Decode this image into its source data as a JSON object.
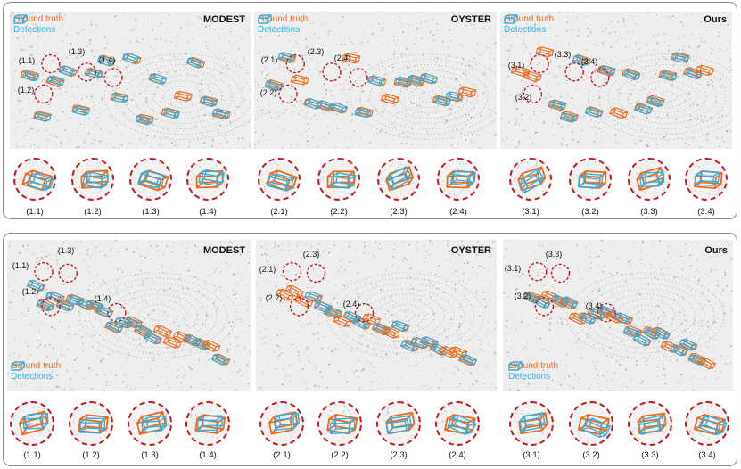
{
  "colors": {
    "ground_truth": "#ee6a1a",
    "detections": "#2fb1e6",
    "callout": "#c21c22",
    "points": "#9a9a9a"
  },
  "legend": {
    "ground_truth": "Ground truth",
    "detections": "Detections"
  },
  "block1": {
    "panels": [
      {
        "title": "MODEST",
        "callouts": [
          "(1.1)",
          "(1.2)",
          "(1.3)",
          "(1.4)"
        ]
      },
      {
        "title": "OYSTER",
        "callouts": [
          "(2.1)",
          "(2.2)",
          "(2.3)",
          "(2.4)"
        ]
      },
      {
        "title": "Ours",
        "callouts": [
          "(3.1)",
          "(3.2)",
          "(3.3)",
          "(3.4)"
        ]
      }
    ],
    "zoom_labels": [
      "(1.1)",
      "(1.2)",
      "(1.3)",
      "(1.4)",
      "(2.1)",
      "(2.2)",
      "(2.3)",
      "(2.4)",
      "(3.1)",
      "(3.2)",
      "(3.3)",
      "(3.4)"
    ]
  },
  "block2": {
    "panels": [
      {
        "title": "MODEST",
        "callouts": [
          "(1.1)",
          "(1.2)",
          "(1.3)",
          "(1.4)"
        ]
      },
      {
        "title": "OYSTER",
        "callouts": [
          "(2.1)",
          "(2.2)",
          "(2.3)",
          "(2.4)"
        ]
      },
      {
        "title": "Ours",
        "callouts": [
          "(3.1)",
          "(3.2)",
          "(3.3)",
          "(3.4)"
        ]
      }
    ],
    "zoom_labels": [
      "(1.1)",
      "(1.2)",
      "(1.3)",
      "(1.4)",
      "(2.1)",
      "(2.2)",
      "(2.3)",
      "(2.4)",
      "(3.1)",
      "(3.2)",
      "(3.3)",
      "(3.4)"
    ]
  }
}
